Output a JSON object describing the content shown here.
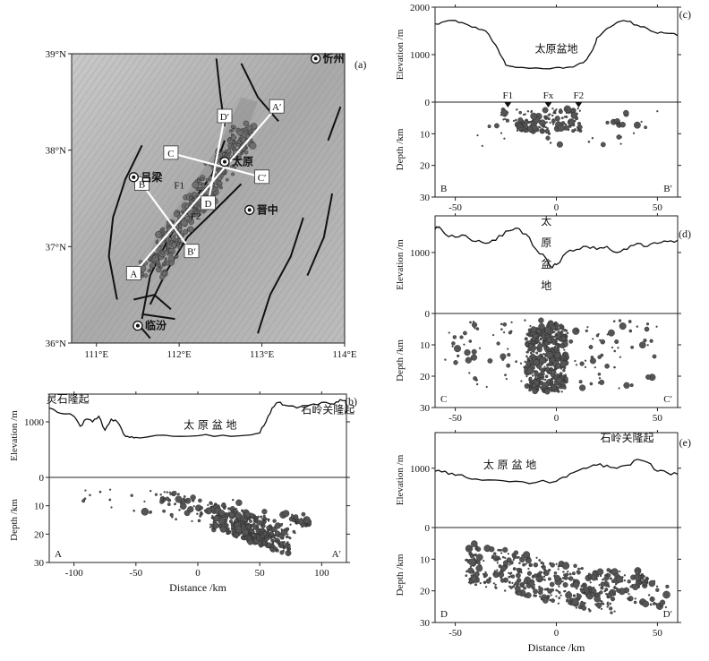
{
  "chart_data": [
    {
      "id": "a",
      "type": "map",
      "panel_label": "(a)",
      "lon_ticks": [
        "111°E",
        "112°E",
        "113°E",
        "114°E"
      ],
      "lat_ticks": [
        "36°N",
        "37°N",
        "38°N",
        "39°N"
      ],
      "lon_range": [
        110.7,
        114.0
      ],
      "lat_range": [
        36.0,
        39.0
      ],
      "cities": [
        {
          "name": "忻州",
          "lon": 113.65,
          "lat": 38.95
        },
        {
          "name": "太原",
          "lon": 112.55,
          "lat": 37.88
        },
        {
          "name": "吕梁",
          "lon": 111.45,
          "lat": 37.72
        },
        {
          "name": "晋中",
          "lon": 112.85,
          "lat": 37.38
        },
        {
          "name": "临汾",
          "lon": 111.5,
          "lat": 36.18
        }
      ],
      "profiles": [
        {
          "start": "A",
          "end": "A′",
          "start_lonlat": [
            111.45,
            36.72
          ],
          "end_lonlat": [
            113.18,
            38.45
          ]
        },
        {
          "start": "B",
          "end": "B′",
          "start_lonlat": [
            111.55,
            37.65
          ],
          "end_lonlat": [
            112.15,
            36.95
          ]
        },
        {
          "start": "C",
          "end": "C′",
          "start_lonlat": [
            111.9,
            37.97
          ],
          "end_lonlat": [
            113.0,
            37.72
          ]
        },
        {
          "start": "D",
          "end": "D′",
          "start_lonlat": [
            112.35,
            37.45
          ],
          "end_lonlat": [
            112.55,
            38.35
          ]
        }
      ],
      "fault_labels": [
        "F1",
        "F2"
      ],
      "seismicity_color": "#6e6e6e"
    },
    {
      "id": "b",
      "type": "profile",
      "panel_label": "(b)",
      "start_label": "A",
      "end_label": "A′",
      "xlabel": "Distance /km",
      "elev_ylabel": "Elevation /m",
      "depth_ylabel": "Depth /km",
      "xlim": [
        -120,
        120
      ],
      "x_ticks": [
        -100,
        -50,
        0,
        50,
        100
      ],
      "elev_ylim": [
        0,
        1500
      ],
      "elev_ticks": [
        0,
        1000
      ],
      "depth_ylim": [
        0,
        30
      ],
      "depth_ticks": [
        0,
        10,
        20,
        30
      ],
      "elevation_profile": {
        "x": [
          -120,
          -110,
          -100,
          -95,
          -90,
          -85,
          -80,
          -75,
          -70,
          -65,
          -60,
          -55,
          -50,
          -40,
          -20,
          0,
          20,
          40,
          50,
          55,
          60,
          65,
          70,
          80,
          90,
          100,
          110,
          115,
          120
        ],
        "y": [
          1250,
          1150,
          1100,
          920,
          1050,
          1000,
          1100,
          850,
          1050,
          1000,
          780,
          720,
          720,
          730,
          740,
          750,
          760,
          760,
          800,
          1000,
          1250,
          1350,
          1300,
          1250,
          1300,
          1350,
          1320,
          1400,
          1380
        ]
      },
      "annotations": [
        {
          "text": "灵石隆起",
          "x": -105,
          "y": 1350
        },
        {
          "text": "太 原 盆 地",
          "x": 10,
          "y": 880
        },
        {
          "text": "石岭关隆起",
          "x": 105,
          "y": 1150
        }
      ],
      "quake_clusters": [
        {
          "x": [
            -95,
            90
          ],
          "z": [
            2,
            18
          ],
          "n": 60
        },
        {
          "x": [
            10,
            75
          ],
          "z": [
            8,
            25
          ],
          "n": 320
        },
        {
          "x": [
            30,
            60
          ],
          "z": [
            15,
            24
          ],
          "n": 120
        },
        {
          "x": [
            -30,
            10
          ],
          "z": [
            4,
            12
          ],
          "n": 40
        },
        {
          "x": [
            75,
            90
          ],
          "z": [
            13,
            17
          ],
          "n": 25
        }
      ]
    },
    {
      "id": "c",
      "type": "profile",
      "panel_label": "(c)",
      "start_label": "B",
      "end_label": "B′",
      "elev_ylabel": "Elevation /m",
      "depth_ylabel": "Depth /km",
      "xlim": [
        -60,
        60
      ],
      "x_ticks": [
        -50,
        0,
        50
      ],
      "elev_ylim": [
        0,
        2000
      ],
      "elev_ticks": [
        0,
        1000,
        2000
      ],
      "depth_ylim": [
        0,
        30
      ],
      "depth_ticks": [
        0,
        10,
        20,
        30
      ],
      "elevation_profile": {
        "x": [
          -60,
          -55,
          -50,
          -45,
          -40,
          -35,
          -30,
          -27,
          -25,
          -20,
          -10,
          0,
          5,
          10,
          15,
          18,
          20,
          25,
          30,
          35,
          40,
          45,
          50,
          55,
          60
        ],
        "y": [
          1650,
          1700,
          1720,
          1650,
          1580,
          1500,
          1200,
          950,
          780,
          730,
          720,
          730,
          730,
          780,
          900,
          1100,
          1350,
          1550,
          1680,
          1700,
          1620,
          1550,
          1450,
          1450,
          1400
        ]
      },
      "annotations": [
        {
          "text": "太原盆地",
          "x": 0,
          "y": 1050
        }
      ],
      "faults": [
        {
          "name": "F1",
          "x": -24
        },
        {
          "name": "Fx",
          "x": -4
        },
        {
          "name": "F2",
          "x": 11
        }
      ],
      "quake_clusters": [
        {
          "x": [
            -20,
            12
          ],
          "z": [
            2,
            10
          ],
          "n": 120
        },
        {
          "x": [
            -40,
            50
          ],
          "z": [
            2,
            14
          ],
          "n": 35
        },
        {
          "x": [
            -28,
            -24
          ],
          "z": [
            3,
            6
          ],
          "n": 8
        },
        {
          "x": [
            28,
            33
          ],
          "z": [
            5,
            8
          ],
          "n": 8
        }
      ]
    },
    {
      "id": "d",
      "type": "profile",
      "panel_label": "(d)",
      "start_label": "C",
      "end_label": "C′",
      "elev_ylabel": "Elevation /m",
      "depth_ylabel": "Depth /km",
      "xlim": [
        -60,
        60
      ],
      "x_ticks": [
        -50,
        0,
        50
      ],
      "elev_ylim": [
        0,
        1600
      ],
      "elev_ticks": [
        0,
        1000
      ],
      "depth_ylim": [
        0,
        30
      ],
      "depth_ticks": [
        0,
        10,
        20,
        30
      ],
      "elevation_profile": {
        "x": [
          -60,
          -58,
          -55,
          -50,
          -45,
          -40,
          -35,
          -30,
          -25,
          -20,
          -15,
          -10,
          -5,
          -2,
          0,
          5,
          10,
          15,
          20,
          25,
          30,
          35,
          40,
          45,
          50,
          55,
          60
        ],
        "y": [
          1380,
          1420,
          1300,
          1250,
          1280,
          1180,
          1150,
          1200,
          1350,
          1400,
          1300,
          1050,
          900,
          750,
          800,
          1000,
          1050,
          1100,
          1050,
          1100,
          1000,
          1050,
          1150,
          1100,
          1150,
          1180,
          1200
        ]
      },
      "annotations": [
        {
          "text": "太",
          "x": -5,
          "y": 1450
        },
        {
          "text": "原",
          "x": -5,
          "y": 1100
        },
        {
          "text": "盆",
          "x": -5,
          "y": 750
        },
        {
          "text": "地",
          "x": -5,
          "y": 400
        }
      ],
      "quake_clusters": [
        {
          "x": [
            -15,
            5
          ],
          "z": [
            3,
            25
          ],
          "n": 420
        },
        {
          "x": [
            -45,
            50
          ],
          "z": [
            2,
            24
          ],
          "n": 120
        },
        {
          "x": [
            -55,
            -40
          ],
          "z": [
            5,
            20
          ],
          "n": 15
        }
      ]
    },
    {
      "id": "e",
      "type": "profile",
      "panel_label": "(e)",
      "start_label": "D",
      "end_label": "D′",
      "xlabel": "Distance /km",
      "elev_ylabel": "Elevation /m",
      "depth_ylabel": "Depth /km",
      "xlim": [
        -60,
        60
      ],
      "x_ticks": [
        -50,
        0,
        50
      ],
      "elev_ylim": [
        0,
        1600
      ],
      "elev_ticks": [
        0,
        1000
      ],
      "depth_ylim": [
        0,
        30
      ],
      "depth_ticks": [
        0,
        10,
        20,
        30
      ],
      "elevation_profile": {
        "x": [
          -60,
          -55,
          -50,
          -45,
          -40,
          -30,
          -20,
          -10,
          0,
          5,
          10,
          15,
          20,
          25,
          30,
          35,
          40,
          45,
          50,
          55,
          60
        ],
        "y": [
          950,
          950,
          880,
          850,
          820,
          800,
          780,
          760,
          780,
          850,
          950,
          1000,
          1050,
          1050,
          1000,
          1050,
          1150,
          1100,
          950,
          920,
          900
        ]
      },
      "annotations": [
        {
          "text": "太 原 盆 地",
          "x": -23,
          "y": 1000
        },
        {
          "text": "石岭关隆起",
          "x": 35,
          "y": 1450
        }
      ],
      "quake_clusters": [
        {
          "x": [
            -45,
            30
          ],
          "z": [
            3,
            25
          ],
          "n": 380
        },
        {
          "x": [
            20,
            55
          ],
          "z": [
            10,
            25
          ],
          "n": 80
        },
        {
          "x": [
            40,
            45
          ],
          "z": [
            13,
            17
          ],
          "n": 20
        }
      ]
    }
  ]
}
